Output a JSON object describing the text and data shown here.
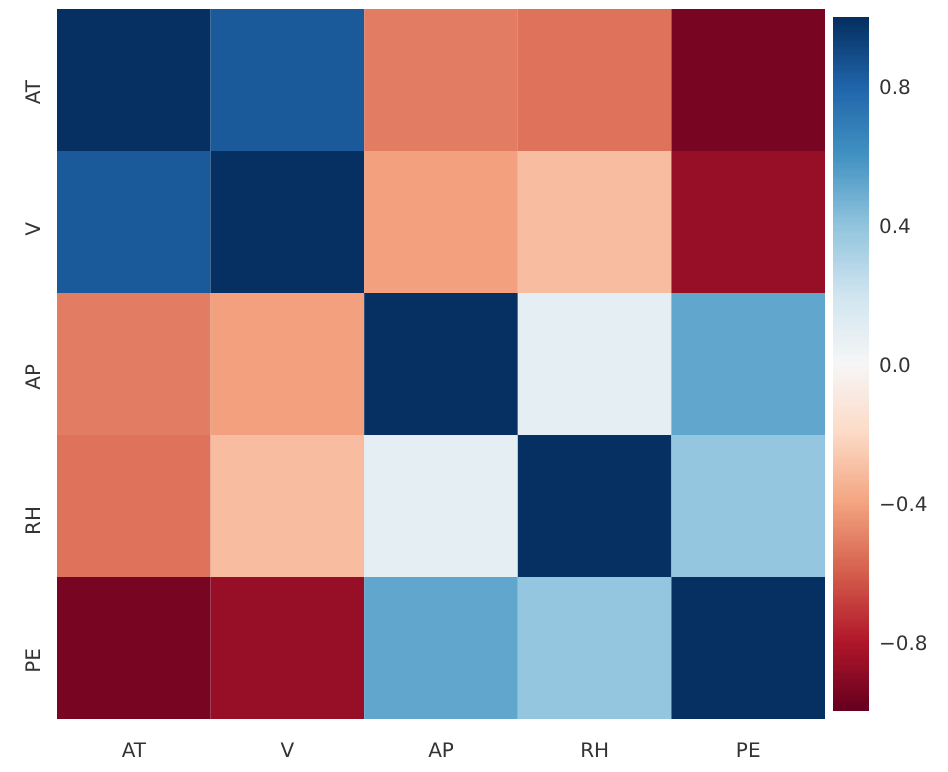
{
  "chart_data": {
    "type": "heatmap",
    "categories": [
      "AT",
      "V",
      "AP",
      "RH",
      "PE"
    ],
    "y_categories": [
      "AT",
      "V",
      "AP",
      "RH",
      "PE"
    ],
    "cells": [
      [
        1,
        0.84,
        -0.51,
        -0.54,
        -0.95
      ],
      [
        0.84,
        1,
        -0.41,
        -0.31,
        -0.87
      ],
      [
        -0.51,
        -0.41,
        1,
        0.1,
        0.52
      ],
      [
        -0.54,
        -0.31,
        0.1,
        1,
        0.39
      ],
      [
        -0.95,
        -0.87,
        0.52,
        0.39,
        1
      ]
    ],
    "clim": [
      -1,
      1
    ],
    "cticks": [
      {
        "value": -0.8,
        "label": "−0.8"
      },
      {
        "value": -0.4,
        "label": "−0.4"
      },
      {
        "value": 0.0,
        "label": "0.0"
      },
      {
        "value": 0.4,
        "label": "0.4"
      },
      {
        "value": 0.8,
        "label": "0.8"
      }
    ]
  }
}
